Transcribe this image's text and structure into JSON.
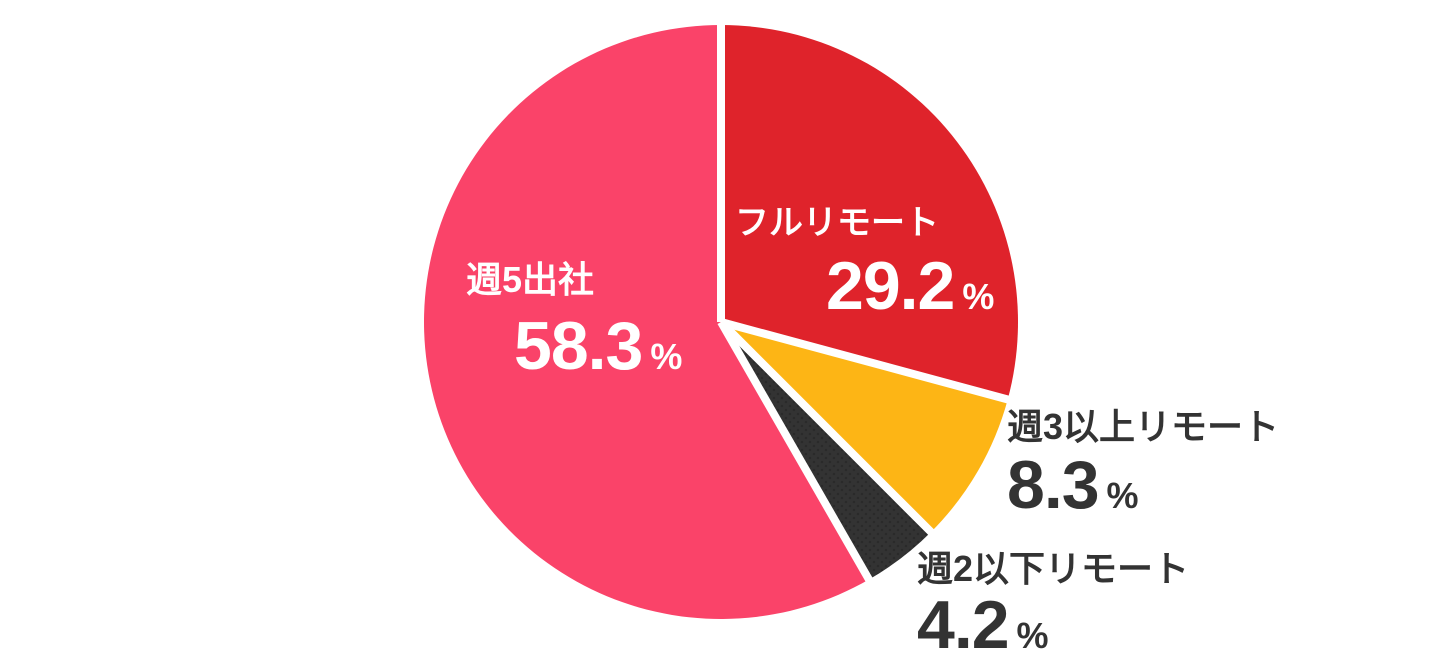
{
  "chart_data": {
    "type": "pie",
    "start_angle_deg": 0,
    "direction": "clockwise",
    "background_color": "#ffffff",
    "separator_color": "#ffffff",
    "legend_position": "none",
    "labels_on_chart": true,
    "segments": [
      {
        "label": "フルリモート",
        "value": 29.2,
        "unit": "%",
        "color": "#DF232B",
        "label_color": "#ffffff",
        "pattern": "solid"
      },
      {
        "label": "週3以上リモート",
        "value": 8.3,
        "unit": "%",
        "color": "#FDB515",
        "label_color": "#333333",
        "pattern": "solid"
      },
      {
        "label": "週2以下リモート",
        "value": 4.2,
        "unit": "%",
        "color": "#333333",
        "label_color": "#333333",
        "pattern": "dots"
      },
      {
        "label": "週5出社",
        "value": 58.3,
        "unit": "%",
        "color": "#FA4369",
        "label_color": "#ffffff",
        "pattern": "solid"
      }
    ]
  }
}
